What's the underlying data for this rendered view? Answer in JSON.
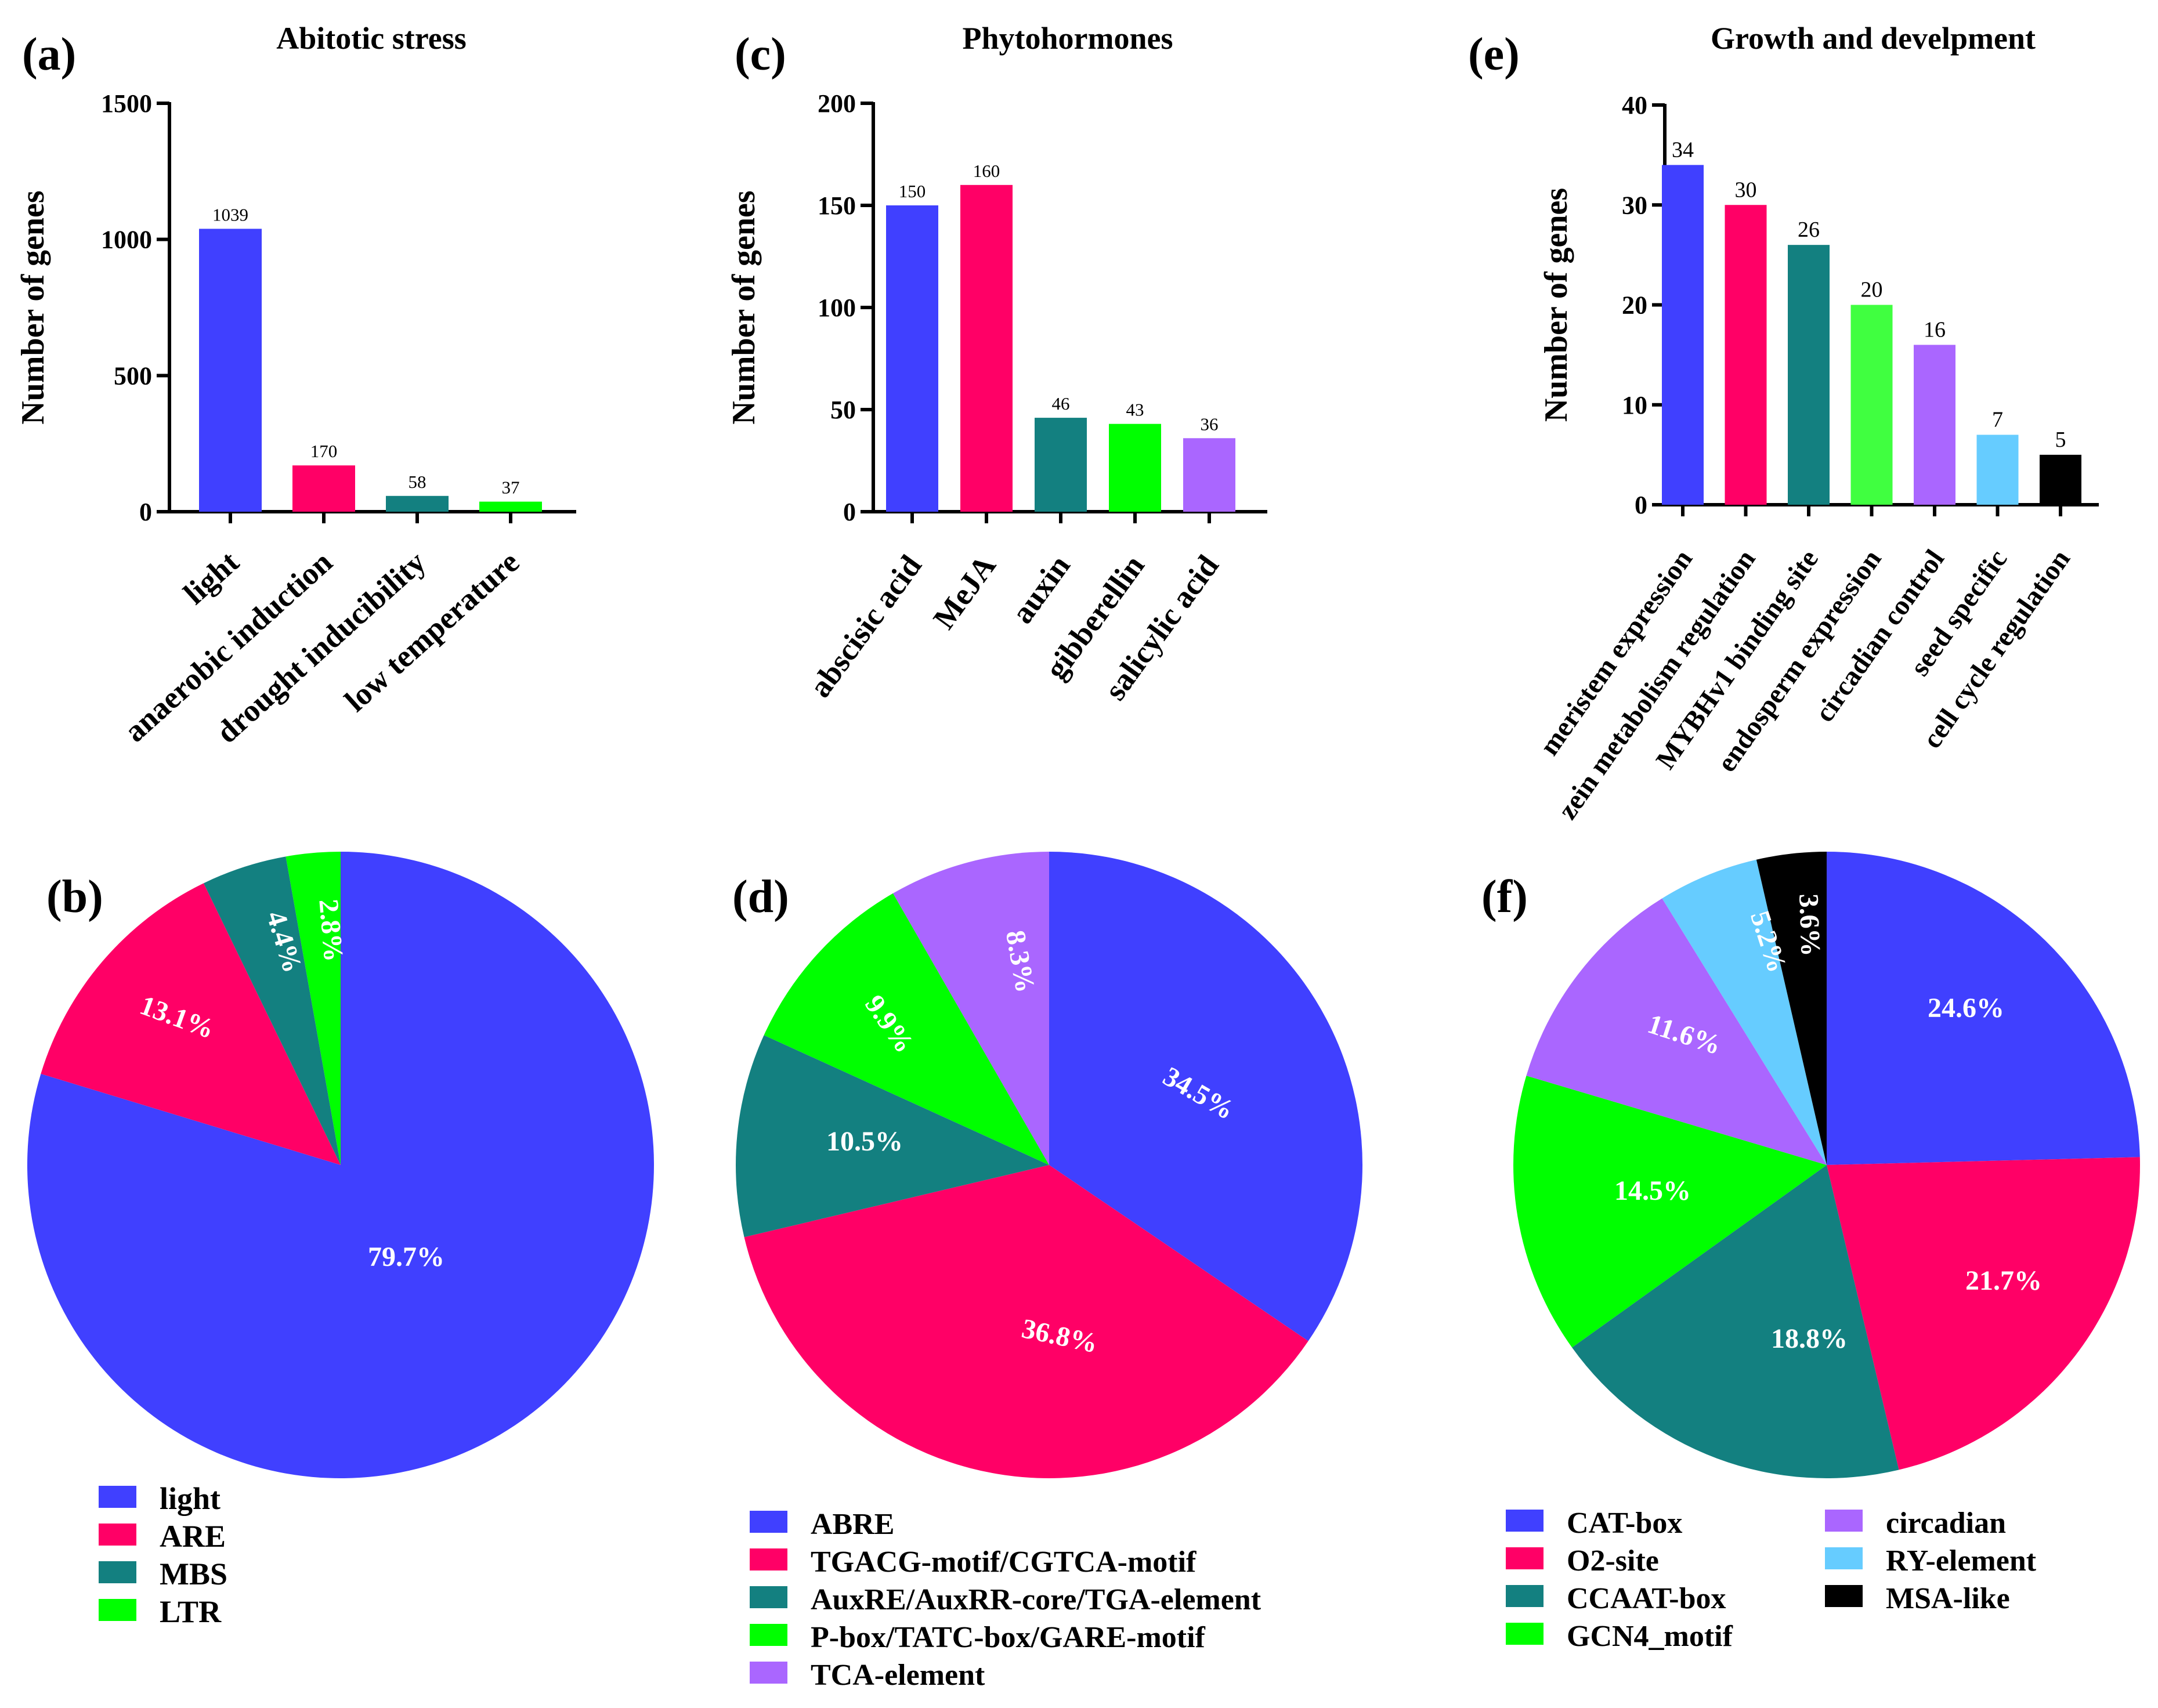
{
  "colors": {
    "blue": "#4040FF",
    "pink": "#FF0066",
    "teal": "#138080",
    "green": "#00FF00",
    "bright_green": "#40FF40",
    "purple": "#AA66FF",
    "sky": "#66CCFF",
    "black": "#000000"
  },
  "chart_data": [
    {
      "panel": "(a)",
      "type": "bar",
      "title": "Abitotic stress",
      "ylabel": "Number of genes",
      "ylim": [
        0,
        1500
      ],
      "yticks": [
        0,
        500,
        1000,
        1500
      ],
      "categories": [
        "light",
        "anaerobic induction",
        "drought inducibility",
        "low temperature"
      ],
      "values": [
        1039,
        170,
        58,
        37
      ],
      "colors": [
        "#4040FF",
        "#FF0066",
        "#138080",
        "#00FF00"
      ]
    },
    {
      "panel": "(c)",
      "type": "bar",
      "title": "Phytohormones",
      "ylabel": "Number of genes",
      "ylim": [
        0,
        200
      ],
      "yticks": [
        0,
        50,
        100,
        150,
        200
      ],
      "categories": [
        "abscisic acid",
        "MeJA",
        "auxin",
        "gibberellin",
        "salicylic acid"
      ],
      "values": [
        150,
        160,
        46,
        43,
        36
      ],
      "colors": [
        "#4040FF",
        "#FF0066",
        "#138080",
        "#00FF00",
        "#AA66FF"
      ]
    },
    {
      "panel": "(e)",
      "type": "bar",
      "title": "Growth and develpment",
      "ylabel": "Number of genes",
      "ylim": [
        0,
        40
      ],
      "yticks": [
        0,
        10,
        20,
        30,
        40
      ],
      "categories": [
        "meristem expression",
        "zein metabolism regulation",
        "MYBHv1 binding site",
        "endosperm expression",
        "circadian control",
        "seed specific",
        "cell cycle regulation"
      ],
      "values": [
        34,
        30,
        26,
        20,
        16,
        7,
        5
      ],
      "colors": [
        "#4040FF",
        "#FF0066",
        "#138080",
        "#40FF40",
        "#AA66FF",
        "#66CCFF",
        "#000000"
      ]
    },
    {
      "panel": "(b)",
      "type": "pie",
      "labels": [
        "light",
        "ARE",
        "MBS",
        "LTR"
      ],
      "values": [
        79.7,
        13.1,
        4.4,
        2.8
      ],
      "value_labels": [
        "79.7%",
        "13.1%",
        "4.4%",
        "2.8%"
      ],
      "colors": [
        "#4040FF",
        "#FF0066",
        "#138080",
        "#00FF00"
      ],
      "legend": "bottom"
    },
    {
      "panel": "(d)",
      "type": "pie",
      "labels": [
        "ABRE",
        "TGACG-motif/CGTCA-motif",
        "AuxRE/AuxRR-core/TGA-element",
        "P-box/TATC-box/GARE-motif",
        "TCA-element"
      ],
      "values": [
        34.5,
        36.8,
        10.5,
        9.9,
        8.3
      ],
      "value_labels": [
        "34.5%",
        "36.8%",
        "10.5%",
        "9.9%",
        "8.3%"
      ],
      "colors": [
        "#4040FF",
        "#FF0066",
        "#138080",
        "#00FF00",
        "#AA66FF"
      ],
      "legend": "bottom"
    },
    {
      "panel": "(f)",
      "type": "pie",
      "labels": [
        "CAT-box",
        "O2-site",
        "CCAAT-box",
        "GCN4_motif",
        "circadian",
        "RY-element",
        "MSA-like"
      ],
      "values": [
        24.6,
        21.7,
        18.8,
        14.5,
        11.6,
        5.2,
        3.6
      ],
      "value_labels": [
        "24.6%",
        "21.7%",
        "18.8%",
        "14.5%",
        "11.6%",
        "5.2%",
        "3.6%"
      ],
      "colors": [
        "#4040FF",
        "#FF0066",
        "#138080",
        "#00FF00",
        "#AA66FF",
        "#66CCFF",
        "#000000"
      ],
      "legend": "bottom"
    }
  ]
}
